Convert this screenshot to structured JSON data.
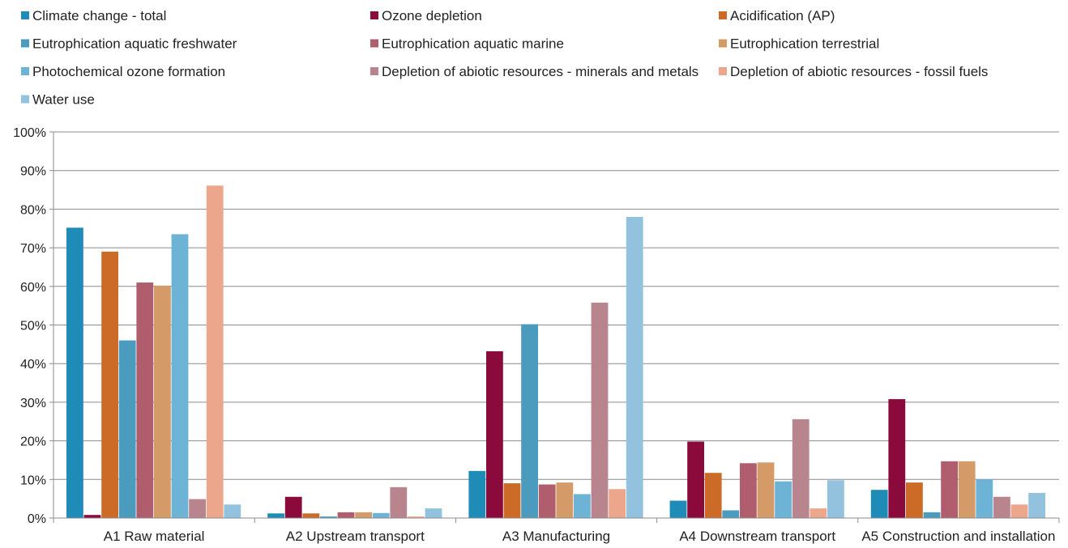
{
  "chart_data": {
    "type": "bar",
    "title": "",
    "xlabel": "",
    "ylabel": "",
    "ylim": [
      0,
      100
    ],
    "y_ticks": [
      "0%",
      "10%",
      "20%",
      "30%",
      "40%",
      "50%",
      "60%",
      "70%",
      "80%",
      "90%",
      "100%"
    ],
    "grid": true,
    "legend_position": "top",
    "categories": [
      "A1 Raw material",
      "A2 Upstream transport",
      "A3 Manufacturing",
      "A4 Downstream transport",
      "A5 Construction and installation"
    ],
    "series": [
      {
        "name": "Climate change - total",
        "color": "#1f8cb8",
        "values": [
          75.2,
          1.2,
          12.2,
          4.5,
          7.3
        ]
      },
      {
        "name": "Ozone depletion",
        "color": "#8b0a3c",
        "values": [
          0.8,
          5.5,
          43.2,
          19.8,
          30.8
        ]
      },
      {
        "name": "Acidification (AP)",
        "color": "#cc6a28",
        "values": [
          69.0,
          1.2,
          9.0,
          11.7,
          9.2
        ]
      },
      {
        "name": "Eutrophication aquatic freshwater",
        "color": "#4a9bbd",
        "values": [
          46.0,
          0.4,
          50.2,
          2.0,
          1.5
        ]
      },
      {
        "name": "Eutrophication aquatic marine",
        "color": "#b05d6e",
        "values": [
          61.0,
          1.5,
          8.7,
          14.2,
          14.7
        ]
      },
      {
        "name": "Eutrophication terrestrial",
        "color": "#d49b69",
        "values": [
          60.2,
          1.5,
          9.2,
          14.4,
          14.7
        ]
      },
      {
        "name": "Photochemical ozone formation",
        "color": "#6cb3d6",
        "values": [
          73.5,
          1.3,
          6.2,
          9.5,
          10.0
        ]
      },
      {
        "name": "Depletion of abiotic resources - minerals and metals",
        "color": "#b8858f",
        "values": [
          4.9,
          8.0,
          55.8,
          25.6,
          5.5
        ]
      },
      {
        "name": "Depletion of abiotic resources - fossil fuels",
        "color": "#eba68c",
        "values": [
          86.1,
          0.4,
          7.5,
          2.5,
          3.5
        ]
      },
      {
        "name": "Water use",
        "color": "#93c2de",
        "values": [
          3.5,
          2.5,
          78.0,
          9.8,
          6.5
        ]
      }
    ]
  }
}
